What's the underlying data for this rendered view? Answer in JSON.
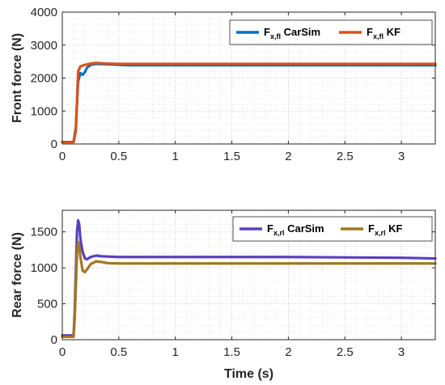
{
  "chart_data": [
    {
      "type": "line",
      "xlabel": "",
      "ylabel": "Front force (N)",
      "xlim": [
        0,
        3.3
      ],
      "ylim": [
        0,
        4000
      ],
      "xticks": [
        "0",
        "0.5",
        "1",
        "1.5",
        "2",
        "2.5",
        "3"
      ],
      "yticks": [
        "0",
        "1000",
        "2000",
        "3000",
        "4000"
      ],
      "grid": "on (major and minor, dotted)",
      "legend_position": "top-right",
      "series": [
        {
          "name": "F_x,fl CarSim",
          "label_main": "F",
          "label_sub": "x,fl",
          "label_rest": " CarSim",
          "color": "#0072BD",
          "x": [
            0,
            0.1,
            0.12,
            0.14,
            0.16,
            0.18,
            0.2,
            0.22,
            0.25,
            0.3,
            0.4,
            0.5,
            0.6,
            1.0,
            2.0,
            3.0,
            3.3
          ],
          "y": [
            60,
            60,
            500,
            1900,
            2150,
            2100,
            2180,
            2320,
            2400,
            2430,
            2420,
            2400,
            2390,
            2390,
            2390,
            2390,
            2390
          ]
        },
        {
          "name": "F_x,fl KF",
          "label_main": "F",
          "label_sub": "x,fl",
          "label_rest": " KF",
          "color": "#D95319",
          "x": [
            0,
            0.1,
            0.12,
            0.14,
            0.16,
            0.18,
            0.2,
            0.25,
            0.3,
            0.35,
            0.4,
            0.5,
            0.6,
            1.0,
            2.0,
            3.0,
            3.3
          ],
          "y": [
            60,
            60,
            400,
            2200,
            2350,
            2380,
            2400,
            2440,
            2460,
            2450,
            2440,
            2430,
            2430,
            2430,
            2430,
            2430,
            2430
          ]
        }
      ]
    },
    {
      "type": "line",
      "xlabel": "Time (s)",
      "ylabel": "Rear force (N)",
      "xlim": [
        0,
        3.3
      ],
      "ylim": [
        0,
        1800
      ],
      "xticks": [
        "0",
        "0.5",
        "1",
        "1.5",
        "2",
        "2.5",
        "3"
      ],
      "yticks": [
        "0",
        "500",
        "1000",
        "1500"
      ],
      "grid": "on (major and minor, dotted)",
      "legend_position": "top-right",
      "series": [
        {
          "name": "F_x,rl CarSim",
          "label_main": "F",
          "label_sub": "x,rl",
          "label_rest": " CarSim",
          "color": "#5A3FC0",
          "x": [
            0,
            0.1,
            0.11,
            0.13,
            0.14,
            0.15,
            0.16,
            0.18,
            0.2,
            0.22,
            0.25,
            0.3,
            0.35,
            0.5,
            1.0,
            2.0,
            3.0,
            3.3
          ],
          "y": [
            60,
            60,
            400,
            1500,
            1660,
            1600,
            1400,
            1220,
            1130,
            1120,
            1150,
            1170,
            1160,
            1150,
            1150,
            1150,
            1140,
            1130
          ]
        },
        {
          "name": "F_x,rl KF",
          "label_main": "F",
          "label_sub": "x,rl",
          "label_rest": " KF",
          "color": "#A07820",
          "x": [
            0,
            0.1,
            0.11,
            0.13,
            0.14,
            0.15,
            0.16,
            0.18,
            0.2,
            0.22,
            0.25,
            0.3,
            0.35,
            0.4,
            0.5,
            1.0,
            2.0,
            3.0,
            3.3
          ],
          "y": [
            40,
            40,
            300,
            1200,
            1360,
            1300,
            1150,
            960,
            940,
            980,
            1050,
            1090,
            1080,
            1065,
            1060,
            1060,
            1060,
            1060,
            1060
          ]
        }
      ]
    }
  ]
}
